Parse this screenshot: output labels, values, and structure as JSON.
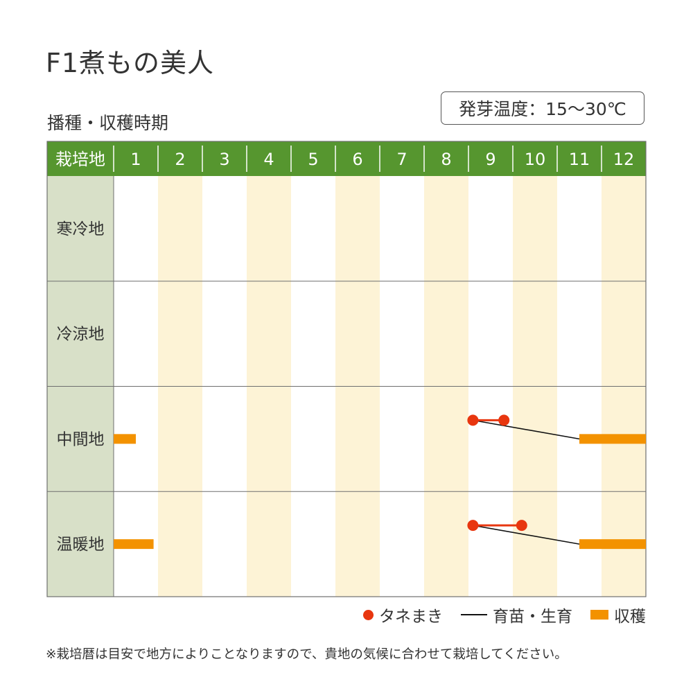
{
  "title": "F1煮もの美人",
  "subtitle": "播種・収穫時期",
  "germination": "発芽温度：15〜30℃",
  "colors": {
    "header_bg": "#56962f",
    "region_col_bg": "#d8e0c8",
    "stripe_bg": "#fdf3d6",
    "grid_line": "#6e6e6e",
    "sowing": "#e8360f",
    "growing": "#111111",
    "harvest": "#f39200"
  },
  "chart_data": {
    "type": "table",
    "corner_label": "栽培地",
    "months": [
      "1",
      "2",
      "3",
      "4",
      "5",
      "6",
      "7",
      "8",
      "9",
      "10",
      "11",
      "12"
    ],
    "regions": [
      {
        "name": "寒冷地",
        "sowing": null,
        "growing": null,
        "harvest": []
      },
      {
        "name": "冷涼地",
        "sowing": null,
        "growing": null,
        "harvest": []
      },
      {
        "name": "中間地",
        "sowing": [
          9.1,
          9.8
        ],
        "growing": [
          9.1,
          11.5
        ],
        "harvest": [
          [
            1.0,
            1.5
          ],
          [
            11.5,
            13.0
          ]
        ]
      },
      {
        "name": "温暖地",
        "sowing": [
          9.1,
          10.2
        ],
        "growing": [
          9.1,
          11.5
        ],
        "harvest": [
          [
            1.0,
            1.9
          ],
          [
            11.5,
            13.0
          ]
        ]
      }
    ]
  },
  "legend": {
    "sowing": "タネまき",
    "growing": "育苗・生育",
    "harvest": "収穫"
  },
  "footnote": "※栽培暦は目安で地方によりことなりますので、貴地の気候に合わせて栽培してください。"
}
